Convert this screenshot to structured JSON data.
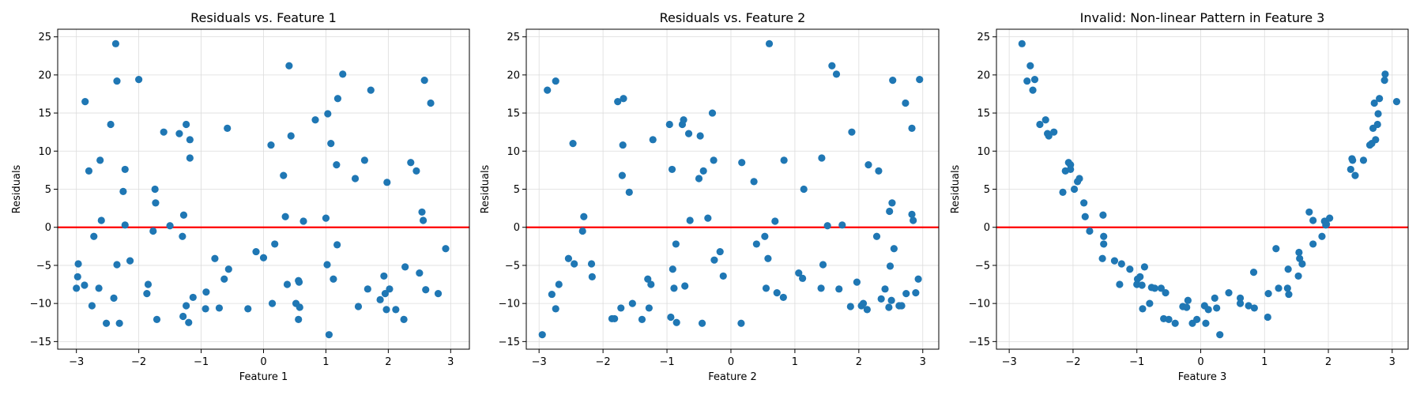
{
  "chart_data": [
    {
      "type": "scatter",
      "title": "Residuals vs. Feature 1",
      "xlabel": "Feature 1",
      "ylabel": "Residuals",
      "xlim": [
        -3.3,
        3.3
      ],
      "ylim": [
        -16,
        26
      ],
      "xticks": [
        -3,
        -2,
        -1,
        0,
        1,
        2,
        3
      ],
      "yticks": [
        -15,
        -10,
        -5,
        0,
        5,
        10,
        15,
        20,
        25
      ],
      "grid": true,
      "hline": 0,
      "point_color": "#1f77b4",
      "line_color": "#ff0000",
      "points": [
        [
          -2.97,
          -4.8
        ],
        [
          -2.98,
          -6.5
        ],
        [
          -3.0,
          -8.0
        ],
        [
          -2.87,
          -7.6
        ],
        [
          -2.86,
          16.5
        ],
        [
          -2.8,
          7.4
        ],
        [
          -2.75,
          -10.3
        ],
        [
          -2.72,
          -1.2
        ],
        [
          -2.64,
          -8.0
        ],
        [
          -2.62,
          8.8
        ],
        [
          -2.6,
          0.9
        ],
        [
          -2.52,
          -12.6
        ],
        [
          -2.45,
          13.5
        ],
        [
          -2.4,
          -9.3
        ],
        [
          -2.37,
          24.1
        ],
        [
          -2.35,
          19.2
        ],
        [
          -2.35,
          -4.9
        ],
        [
          -2.31,
          -12.6
        ],
        [
          -2.25,
          4.7
        ],
        [
          -2.22,
          7.6
        ],
        [
          -2.22,
          0.3
        ],
        [
          -2.14,
          -4.4
        ],
        [
          -2.0,
          19.4
        ],
        [
          -1.87,
          -8.7
        ],
        [
          -1.85,
          -7.5
        ],
        [
          -1.77,
          -0.5
        ],
        [
          -1.74,
          5.0
        ],
        [
          -1.73,
          3.2
        ],
        [
          -1.71,
          -12.1
        ],
        [
          -1.6,
          12.5
        ],
        [
          -1.5,
          0.2
        ],
        [
          -1.35,
          12.3
        ],
        [
          -1.3,
          -1.2
        ],
        [
          -1.29,
          -11.7
        ],
        [
          -1.28,
          1.6
        ],
        [
          -1.24,
          13.5
        ],
        [
          -1.24,
          -10.3
        ],
        [
          -1.2,
          -12.5
        ],
        [
          -1.18,
          11.5
        ],
        [
          -1.18,
          9.1
        ],
        [
          -1.13,
          -9.2
        ],
        [
          -0.92,
          -8.5
        ],
        [
          -0.93,
          -10.7
        ],
        [
          -0.78,
          -4.1
        ],
        [
          -0.71,
          -10.6
        ],
        [
          -0.63,
          -6.8
        ],
        [
          -0.58,
          13.0
        ],
        [
          -0.56,
          -5.5
        ],
        [
          -0.25,
          -10.7
        ],
        [
          -0.12,
          -3.2
        ],
        [
          0.0,
          -4.0
        ],
        [
          0.12,
          10.8
        ],
        [
          0.14,
          -10.0
        ],
        [
          0.18,
          -2.2
        ],
        [
          0.32,
          6.8
        ],
        [
          0.35,
          1.4
        ],
        [
          0.38,
          -7.5
        ],
        [
          0.41,
          21.2
        ],
        [
          0.44,
          12.0
        ],
        [
          0.52,
          -10.0
        ],
        [
          0.56,
          -7.0
        ],
        [
          0.57,
          -7.2
        ],
        [
          0.56,
          -12.1
        ],
        [
          0.58,
          -10.5
        ],
        [
          0.64,
          0.8
        ],
        [
          0.83,
          14.1
        ],
        [
          1.0,
          1.2
        ],
        [
          1.02,
          -4.9
        ],
        [
          1.03,
          14.9
        ],
        [
          1.05,
          -14.1
        ],
        [
          1.08,
          11.0
        ],
        [
          1.12,
          -6.8
        ],
        [
          1.17,
          8.2
        ],
        [
          1.18,
          -2.3
        ],
        [
          1.19,
          16.9
        ],
        [
          1.27,
          20.1
        ],
        [
          1.47,
          6.4
        ],
        [
          1.52,
          -10.4
        ],
        [
          1.62,
          8.8
        ],
        [
          1.67,
          -8.1
        ],
        [
          1.72,
          18.0
        ],
        [
          1.87,
          -9.5
        ],
        [
          1.93,
          -6.4
        ],
        [
          1.95,
          -8.7
        ],
        [
          1.98,
          5.9
        ],
        [
          1.97,
          -10.8
        ],
        [
          2.02,
          -8.1
        ],
        [
          2.12,
          -10.8
        ],
        [
          2.25,
          -12.1
        ],
        [
          2.27,
          -5.2
        ],
        [
          2.36,
          8.5
        ],
        [
          2.45,
          7.4
        ],
        [
          2.5,
          -6.0
        ],
        [
          2.54,
          2.0
        ],
        [
          2.56,
          0.9
        ],
        [
          2.58,
          19.3
        ],
        [
          2.6,
          -8.2
        ],
        [
          2.68,
          16.3
        ],
        [
          2.8,
          -8.7
        ],
        [
          2.92,
          -2.8
        ]
      ]
    },
    {
      "type": "scatter",
      "title": "Residuals vs. Feature 2",
      "xlabel": "Feature 2",
      "ylabel": "Residuals",
      "xlim": [
        -3.2,
        3.25
      ],
      "ylim": [
        -16,
        26
      ],
      "xticks": [
        -3,
        -2,
        -1,
        0,
        1,
        2,
        3
      ],
      "yticks": [
        -15,
        -10,
        -5,
        0,
        5,
        10,
        15,
        20,
        25
      ],
      "grid": true,
      "hline": 0,
      "point_color": "#1f77b4",
      "line_color": "#ff0000",
      "points": [
        [
          -2.95,
          -14.1
        ],
        [
          -2.87,
          18.0
        ],
        [
          -2.8,
          -8.8
        ],
        [
          -2.74,
          -10.7
        ],
        [
          -2.74,
          19.2
        ],
        [
          -2.69,
          -7.5
        ],
        [
          -2.54,
          -4.1
        ],
        [
          -2.47,
          11.0
        ],
        [
          -2.45,
          -4.8
        ],
        [
          -2.3,
          1.4
        ],
        [
          -2.32,
          -0.5
        ],
        [
          -2.18,
          -4.8
        ],
        [
          -2.17,
          -6.5
        ],
        [
          -1.86,
          -12.0
        ],
        [
          -1.82,
          -12.0
        ],
        [
          -1.77,
          16.5
        ],
        [
          -1.72,
          -10.6
        ],
        [
          -1.7,
          6.8
        ],
        [
          -1.69,
          10.8
        ],
        [
          -1.68,
          16.9
        ],
        [
          -1.59,
          4.6
        ],
        [
          -1.54,
          -10.0
        ],
        [
          -1.39,
          -12.1
        ],
        [
          -1.3,
          -6.8
        ],
        [
          -1.28,
          -10.6
        ],
        [
          -1.25,
          -7.5
        ],
        [
          -1.22,
          11.5
        ],
        [
          -0.96,
          13.5
        ],
        [
          -0.94,
          -11.8
        ],
        [
          -0.92,
          7.6
        ],
        [
          -0.91,
          -5.5
        ],
        [
          -0.89,
          -8.0
        ],
        [
          -0.85,
          -12.5
        ],
        [
          -0.86,
          -2.2
        ],
        [
          -0.76,
          13.5
        ],
        [
          -0.74,
          14.1
        ],
        [
          -0.72,
          -7.7
        ],
        [
          -0.66,
          12.3
        ],
        [
          -0.64,
          0.9
        ],
        [
          -0.5,
          6.4
        ],
        [
          -0.48,
          12.0
        ],
        [
          -0.45,
          -12.6
        ],
        [
          -0.43,
          7.4
        ],
        [
          -0.36,
          1.2
        ],
        [
          -0.29,
          15.0
        ],
        [
          -0.27,
          8.8
        ],
        [
          -0.26,
          -4.3
        ],
        [
          -0.17,
          -3.2
        ],
        [
          -0.12,
          -6.4
        ],
        [
          0.16,
          -12.6
        ],
        [
          0.17,
          8.5
        ],
        [
          0.36,
          6.0
        ],
        [
          0.4,
          -2.2
        ],
        [
          0.53,
          -1.2
        ],
        [
          0.55,
          -8.0
        ],
        [
          0.58,
          -4.1
        ],
        [
          0.6,
          24.1
        ],
        [
          0.69,
          0.8
        ],
        [
          0.72,
          -8.6
        ],
        [
          0.82,
          -9.2
        ],
        [
          0.83,
          8.8
        ],
        [
          1.06,
          -6.0
        ],
        [
          1.12,
          -6.7
        ],
        [
          1.14,
          5.0
        ],
        [
          1.41,
          -8.0
        ],
        [
          1.42,
          9.1
        ],
        [
          1.44,
          -4.9
        ],
        [
          1.51,
          0.2
        ],
        [
          1.58,
          21.2
        ],
        [
          1.65,
          20.1
        ],
        [
          1.69,
          -8.1
        ],
        [
          1.74,
          0.3
        ],
        [
          1.89,
          12.5
        ],
        [
          1.87,
          -10.4
        ],
        [
          1.97,
          -7.2
        ],
        [
          2.04,
          -10.3
        ],
        [
          2.07,
          -10.0
        ],
        [
          2.13,
          -10.8
        ],
        [
          2.15,
          8.2
        ],
        [
          2.28,
          -1.2
        ],
        [
          2.31,
          7.4
        ],
        [
          2.35,
          -9.4
        ],
        [
          2.41,
          -8.1
        ],
        [
          2.47,
          -10.5
        ],
        [
          2.48,
          2.1
        ],
        [
          2.49,
          -5.1
        ],
        [
          2.51,
          -9.6
        ],
        [
          2.52,
          3.2
        ],
        [
          2.53,
          19.3
        ],
        [
          2.55,
          -2.8
        ],
        [
          2.63,
          -10.3
        ],
        [
          2.67,
          -10.3
        ],
        [
          2.73,
          16.3
        ],
        [
          2.74,
          -8.7
        ],
        [
          2.83,
          13.0
        ],
        [
          2.83,
          1.7
        ],
        [
          2.85,
          0.9
        ],
        [
          2.89,
          -8.6
        ],
        [
          2.93,
          -6.8
        ],
        [
          2.95,
          19.4
        ]
      ]
    },
    {
      "type": "scatter",
      "title": "Invalid: Non-linear Pattern in Feature 3",
      "xlabel": "Feature 3",
      "ylabel": "Residuals",
      "xlim": [
        -3.2,
        3.25
      ],
      "ylim": [
        -16,
        26
      ],
      "xticks": [
        -3,
        -2,
        -1,
        0,
        1,
        2,
        3
      ],
      "yticks": [
        -15,
        -10,
        -5,
        0,
        5,
        10,
        15,
        20,
        25
      ],
      "grid": true,
      "hline": 0,
      "point_color": "#1f77b4",
      "line_color": "#ff0000",
      "points": [
        [
          -2.8,
          24.1
        ],
        [
          -2.72,
          19.2
        ],
        [
          -2.67,
          21.2
        ],
        [
          -2.63,
          18.0
        ],
        [
          -2.6,
          19.4
        ],
        [
          -2.52,
          13.5
        ],
        [
          -2.43,
          14.1
        ],
        [
          -2.4,
          12.3
        ],
        [
          -2.38,
          12.0
        ],
        [
          -2.3,
          12.5
        ],
        [
          -2.16,
          4.6
        ],
        [
          -2.12,
          7.4
        ],
        [
          -2.07,
          8.5
        ],
        [
          -2.04,
          7.6
        ],
        [
          -2.04,
          8.2
        ],
        [
          -1.98,
          5.0
        ],
        [
          -1.93,
          6.0
        ],
        [
          -1.9,
          6.4
        ],
        [
          -1.83,
          3.2
        ],
        [
          -1.81,
          1.4
        ],
        [
          -1.74,
          -0.5
        ],
        [
          -1.53,
          1.6
        ],
        [
          -1.52,
          -1.2
        ],
        [
          -1.52,
          -2.2
        ],
        [
          -1.54,
          -4.1
        ],
        [
          -1.35,
          -4.4
        ],
        [
          -1.27,
          -7.5
        ],
        [
          -1.24,
          -4.8
        ],
        [
          -1.11,
          -5.5
        ],
        [
          -1.0,
          -7.5
        ],
        [
          -0.99,
          -6.8
        ],
        [
          -0.95,
          -6.5
        ],
        [
          -0.92,
          -7.6
        ],
        [
          -0.91,
          -10.7
        ],
        [
          -0.88,
          -5.2
        ],
        [
          -0.8,
          -10.0
        ],
        [
          -0.77,
          -7.9
        ],
        [
          -0.72,
          -8.0
        ],
        [
          -0.62,
          -8.0
        ],
        [
          -0.58,
          -12.0
        ],
        [
          -0.55,
          -8.6
        ],
        [
          -0.5,
          -12.1
        ],
        [
          -0.4,
          -12.6
        ],
        [
          -0.28,
          -10.4
        ],
        [
          -0.22,
          -10.5
        ],
        [
          -0.2,
          -9.6
        ],
        [
          -0.13,
          -12.6
        ],
        [
          -0.06,
          -12.1
        ],
        [
          0.06,
          -10.3
        ],
        [
          0.08,
          -12.6
        ],
        [
          0.12,
          -10.8
        ],
        [
          0.22,
          -9.3
        ],
        [
          0.25,
          -10.6
        ],
        [
          0.3,
          -14.1
        ],
        [
          0.44,
          -8.6
        ],
        [
          0.62,
          -9.3
        ],
        [
          0.62,
          -10.0
        ],
        [
          0.75,
          -10.3
        ],
        [
          0.84,
          -10.6
        ],
        [
          0.83,
          -5.9
        ],
        [
          1.06,
          -8.7
        ],
        [
          1.05,
          -11.8
        ],
        [
          1.18,
          -2.8
        ],
        [
          1.22,
          -8.0
        ],
        [
          1.36,
          -8.0
        ],
        [
          1.37,
          -5.5
        ],
        [
          1.38,
          -8.8
        ],
        [
          1.53,
          -6.4
        ],
        [
          1.54,
          -3.3
        ],
        [
          1.55,
          -4.1
        ],
        [
          1.59,
          -4.8
        ],
        [
          1.7,
          2.0
        ],
        [
          1.76,
          0.9
        ],
        [
          1.76,
          -2.2
        ],
        [
          1.9,
          -1.2
        ],
        [
          1.94,
          0.8
        ],
        [
          1.96,
          0.3
        ],
        [
          1.97,
          0.4
        ],
        [
          2.02,
          1.2
        ],
        [
          2.35,
          7.6
        ],
        [
          2.38,
          8.8
        ],
        [
          2.37,
          9.0
        ],
        [
          2.42,
          6.8
        ],
        [
          2.55,
          8.8
        ],
        [
          2.65,
          10.8
        ],
        [
          2.68,
          11.0
        ],
        [
          2.7,
          13.0
        ],
        [
          2.72,
          16.3
        ],
        [
          2.74,
          11.5
        ],
        [
          2.77,
          13.5
        ],
        [
          2.78,
          14.9
        ],
        [
          2.8,
          16.9
        ],
        [
          2.88,
          19.3
        ],
        [
          2.89,
          20.1
        ],
        [
          3.07,
          16.5
        ]
      ]
    }
  ]
}
